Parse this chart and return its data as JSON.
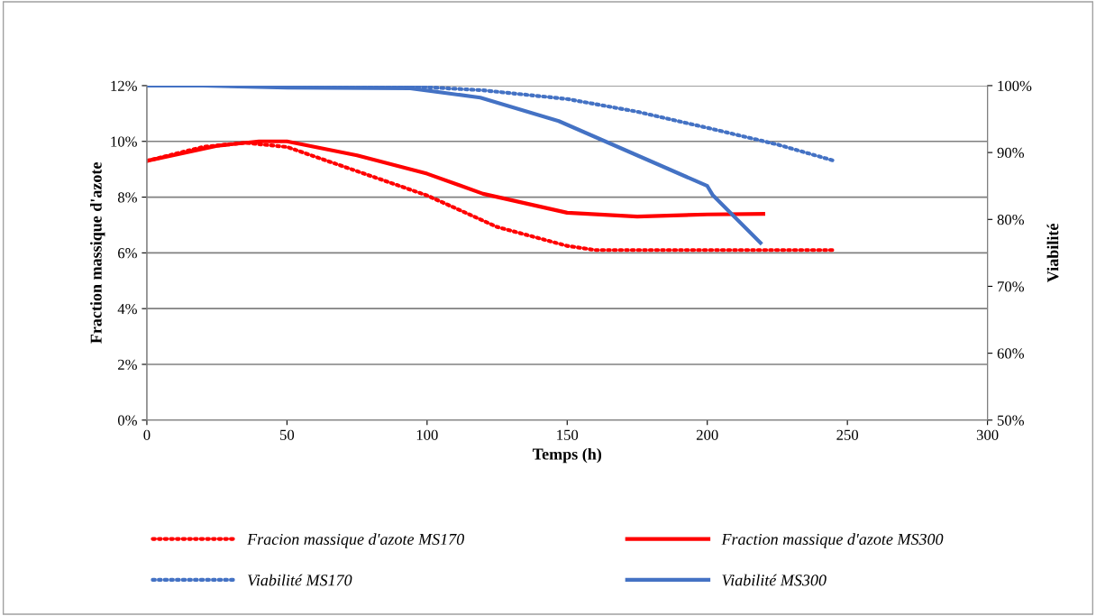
{
  "chart_data": {
    "type": "line",
    "xlabel": "Temps (h)",
    "ylabel": "Fraction massique d'azote",
    "y2label": "Viabilité",
    "xlim": [
      0,
      300
    ],
    "xticks": [
      0,
      50,
      100,
      150,
      200,
      250,
      300
    ],
    "ylim": [
      0,
      12
    ],
    "yticks": [
      {
        "value": 0,
        "label": "0%"
      },
      {
        "value": 2,
        "label": "2%"
      },
      {
        "value": 4,
        "label": "4%"
      },
      {
        "value": 6,
        "label": "6%"
      },
      {
        "value": 8,
        "label": "8%"
      },
      {
        "value": 10,
        "label": "10%"
      },
      {
        "value": 12,
        "label": "12%"
      }
    ],
    "y2lim": [
      50,
      100
    ],
    "y2ticks": [
      {
        "value": 50,
        "label": "50%"
      },
      {
        "value": 60,
        "label": "60%"
      },
      {
        "value": 70,
        "label": "70%"
      },
      {
        "value": 80,
        "label": "80%"
      },
      {
        "value": 90,
        "label": "90%"
      },
      {
        "value": 100,
        "label": "100%"
      }
    ],
    "grid": "y",
    "legend": "bottom",
    "marker": "none",
    "series": [
      {
        "name": "Fracion massique d'azote MS170",
        "color": "#ff0000",
        "line_style": "dotted",
        "x": [
          0,
          20,
          35,
          50,
          75,
          100,
          125,
          150,
          160,
          200,
          245
        ],
        "values": [
          9.3,
          9.8,
          9.95,
          9.8,
          8.93,
          8.06,
          6.93,
          6.25,
          6.1,
          6.1,
          6.1
        ]
      },
      {
        "name": "Fraction massique d'azote MS300",
        "color": "#ff0000",
        "line_style": "solid",
        "x": [
          0,
          25,
          40,
          50,
          75,
          100,
          120,
          150,
          175,
          200,
          220
        ],
        "values": [
          9.3,
          9.84,
          10.0,
          10.0,
          9.5,
          8.84,
          8.12,
          7.44,
          7.3,
          7.38,
          7.4
        ]
      },
      {
        "name": "Viabilité MS170",
        "color": "#4472c4",
        "line_style": "dotted",
        "axis": "y2",
        "x": [
          0,
          50,
          90,
          120,
          150,
          175,
          200,
          225,
          245
        ],
        "values": [
          100,
          100,
          100,
          99.3,
          98.0,
          96.1,
          93.7,
          91.2,
          88.8
        ]
      },
      {
        "name": "Viabilité MS300",
        "color": "#4472c4",
        "line_style": "solid",
        "axis": "y2",
        "x": [
          0,
          20,
          50,
          94,
          119,
          147,
          200,
          202,
          219
        ],
        "values": [
          100,
          100,
          99.7,
          99.6,
          98.2,
          94.7,
          85.0,
          83.6,
          76.5
        ]
      }
    ]
  }
}
